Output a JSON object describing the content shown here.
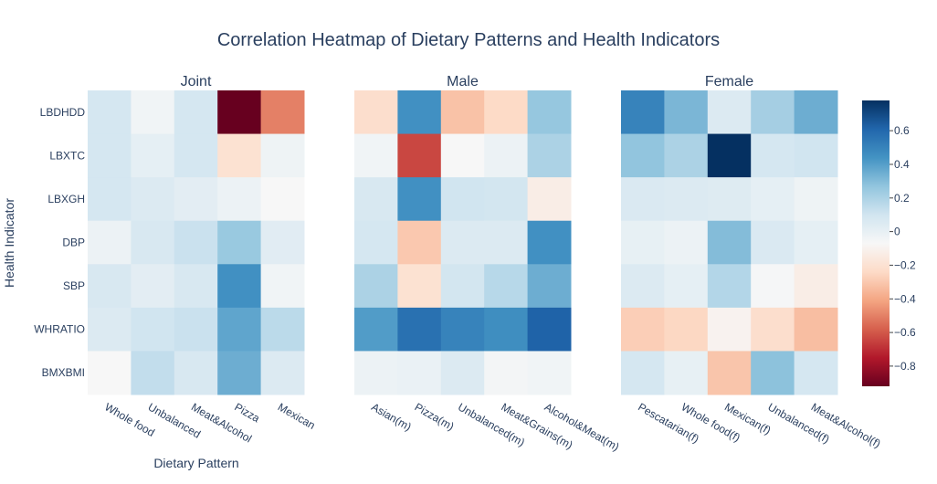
{
  "chart_data": {
    "type": "heatmap",
    "title": "Correlation Heatmap of Dietary Patterns and Health Indicators",
    "xlabel": "Dietary Pattern",
    "ylabel": "Health Indicator",
    "rows": [
      "LBDHDD",
      "LBXTC",
      "LBXGH",
      "DBP",
      "SBP",
      "WHRATIO",
      "BMXBMI"
    ],
    "zlim": [
      -0.92,
      0.78
    ],
    "colorbar": {
      "ticks": [
        0.6,
        0.4,
        0.2,
        0,
        -0.2,
        -0.4,
        -0.6,
        -0.8
      ],
      "tick_labels": [
        "0.6",
        "0.4",
        "0.2",
        "0",
        "−0.2",
        "−0.4",
        "−0.6",
        "−0.8"
      ],
      "colorscale": "RdBu"
    },
    "panels": [
      {
        "name": "Joint",
        "columns": [
          "Whole food",
          "Unbalanced",
          "Meat&Alcohol",
          "Pizza",
          "Mexican"
        ],
        "z": [
          [
            0.08,
            -0.04,
            0.08,
            -0.92,
            -0.5
          ],
          [
            0.08,
            0.01,
            0.08,
            -0.2,
            -0.03
          ],
          [
            0.08,
            0.05,
            0.02,
            -0.02,
            -0.07
          ],
          [
            -0.02,
            0.07,
            0.12,
            0.25,
            0.03
          ],
          [
            0.07,
            0.02,
            0.07,
            0.45,
            -0.04
          ],
          [
            0.05,
            0.1,
            0.12,
            0.38,
            0.16
          ],
          [
            -0.07,
            0.14,
            0.07,
            0.35,
            0.05
          ]
        ]
      },
      {
        "name": "Male",
        "columns": [
          "Asian(m)",
          "Pizza(m)",
          "Unbalanced(m)",
          "Meat&Grains(m)",
          "Alcohol&Meat(m)"
        ],
        "z": [
          [
            -0.22,
            0.45,
            -0.32,
            -0.24,
            0.26
          ],
          [
            -0.04,
            -0.64,
            -0.07,
            -0.02,
            0.2
          ],
          [
            0.07,
            0.45,
            0.1,
            0.09,
            -0.13
          ],
          [
            0.08,
            -0.3,
            0.05,
            0.05,
            0.45
          ],
          [
            0.2,
            -0.2,
            0.09,
            0.17,
            0.35
          ],
          [
            0.41,
            0.57,
            0.5,
            0.46,
            0.62
          ],
          [
            -0.02,
            -0.01,
            0.05,
            -0.05,
            -0.04
          ]
        ]
      },
      {
        "name": "Female",
        "columns": [
          "Pescatarian(f)",
          "Whole food(f)",
          "Mexican(f)",
          "Unbalanced(f)",
          "Meat&Alcohol(f)"
        ],
        "z": [
          [
            0.5,
            0.32,
            0.05,
            0.22,
            0.35
          ],
          [
            0.27,
            0.2,
            0.78,
            0.08,
            0.1
          ],
          [
            0.06,
            0.05,
            0.04,
            0.01,
            -0.03
          ],
          [
            0.0,
            -0.02,
            0.3,
            0.06,
            0.01
          ],
          [
            0.05,
            0.01,
            0.18,
            -0.06,
            -0.13
          ],
          [
            -0.28,
            -0.25,
            -0.1,
            -0.22,
            -0.33
          ],
          [
            0.08,
            0.0,
            -0.31,
            0.28,
            0.08
          ]
        ]
      }
    ]
  }
}
